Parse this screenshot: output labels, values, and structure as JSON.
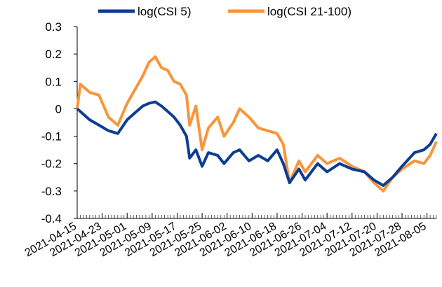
{
  "chart_data": {
    "type": "line",
    "x": [
      "2021-04-15",
      "2021-04-16",
      "2021-04-19",
      "2021-04-22",
      "2021-04-25",
      "2021-04-28",
      "2021-05-01",
      "2021-05-04",
      "2021-05-06",
      "2021-05-08",
      "2021-05-10",
      "2021-05-12",
      "2021-05-14",
      "2021-05-16",
      "2021-05-18",
      "2021-05-20",
      "2021-05-21",
      "2021-05-23",
      "2021-05-25",
      "2021-05-27",
      "2021-05-30",
      "2021-06-01",
      "2021-06-04",
      "2021-06-06",
      "2021-06-09",
      "2021-06-12",
      "2021-06-15",
      "2021-06-18",
      "2021-06-20",
      "2021-06-22",
      "2021-06-25",
      "2021-06-27",
      "2021-07-01",
      "2021-07-04",
      "2021-07-08",
      "2021-07-12",
      "2021-07-16",
      "2021-07-19",
      "2021-07-22",
      "2021-07-25",
      "2021-07-28",
      "2021-08-01",
      "2021-08-04",
      "2021-08-06",
      "2021-08-08"
    ],
    "series": [
      {
        "name": "log(CSI 5)",
        "color": "#0d3d91",
        "values": [
          0,
          -0.01,
          -0.04,
          -0.06,
          -0.08,
          -0.09,
          -0.04,
          -0.01,
          0.01,
          0.02,
          0.025,
          0.01,
          -0.01,
          -0.03,
          -0.06,
          -0.1,
          -0.18,
          -0.15,
          -0.21,
          -0.16,
          -0.17,
          -0.2,
          -0.16,
          -0.15,
          -0.19,
          -0.17,
          -0.19,
          -0.15,
          -0.2,
          -0.27,
          -0.22,
          -0.26,
          -0.2,
          -0.23,
          -0.2,
          -0.22,
          -0.23,
          -0.26,
          -0.28,
          -0.25,
          -0.21,
          -0.16,
          -0.15,
          -0.13,
          -0.09
        ]
      },
      {
        "name": "log(CSI 21-100)",
        "color": "#f7963c",
        "values": [
          0,
          0.09,
          0.06,
          0.05,
          -0.03,
          -0.06,
          0.02,
          0.08,
          0.12,
          0.17,
          0.19,
          0.15,
          0.14,
          0.1,
          0.09,
          0.05,
          -0.06,
          0.01,
          -0.15,
          -0.07,
          -0.03,
          -0.1,
          -0.05,
          0,
          -0.03,
          -0.07,
          -0.08,
          -0.09,
          -0.13,
          -0.27,
          -0.19,
          -0.23,
          -0.17,
          -0.2,
          -0.18,
          -0.21,
          -0.23,
          -0.27,
          -0.3,
          -0.25,
          -0.22,
          -0.19,
          -0.2,
          -0.17,
          -0.12
        ]
      }
    ],
    "xlim": [
      "2021-04-15",
      "2021-08-08"
    ],
    "xticks": [
      "2021-04-15",
      "2021-04-23",
      "2021-05-01",
      "2021-05-09",
      "2021-05-17",
      "2021-05-25",
      "2021-06-02",
      "2021-06-10",
      "2021-06-18",
      "2021-06-26",
      "2021-07-04",
      "2021-07-12",
      "2021-07-20",
      "2021-07-28",
      "2021-08-05"
    ],
    "ylim": [
      -0.4,
      0.3
    ],
    "yticks": [
      -0.4,
      -0.3,
      -0.2,
      -0.1,
      0,
      0.1,
      0.2,
      0.3
    ],
    "legend": "top"
  }
}
